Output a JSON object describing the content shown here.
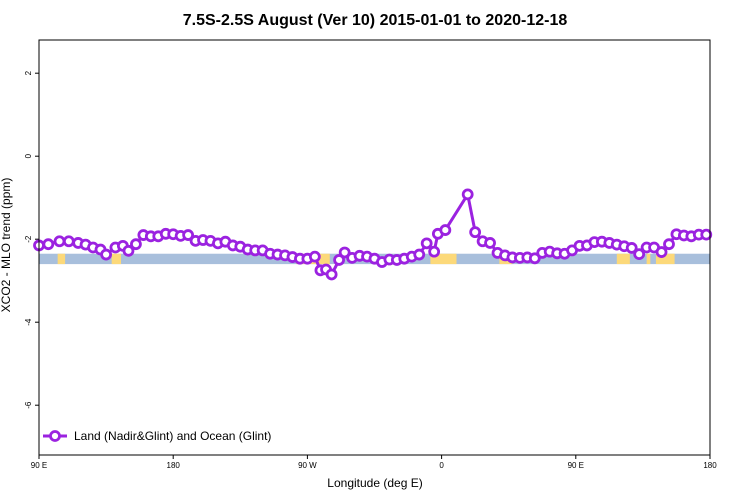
{
  "chart_data": {
    "type": "line",
    "title": "7.5S-2.5S August (Ver 10)   2015-01-01 to 2020-12-18",
    "xlabel": "Longitude (deg E)",
    "ylabel": "XCO2 - MLO trend (ppm)",
    "xlim": [
      90,
      450
    ],
    "ylim": [
      -7.2,
      2.8
    ],
    "x_ticks": [
      {
        "value": 90,
        "label": "90 E"
      },
      {
        "value": 162,
        "label": "180"
      },
      {
        "value": 234,
        "label": "90 W"
      },
      {
        "value": 306,
        "label": "0"
      },
      {
        "value": 378,
        "label": "90 E"
      },
      {
        "value": 450,
        "label": "180"
      }
    ],
    "y_ticks": [
      {
        "value": 2,
        "label": "2"
      },
      {
        "value": 0,
        "label": "0"
      },
      {
        "value": -2,
        "label": "-2"
      },
      {
        "value": -4,
        "label": "-4"
      },
      {
        "value": -6,
        "label": "-6"
      }
    ],
    "band": {
      "y_top": -2.35,
      "y_bottom": -2.6,
      "ocean_color": "#a8bfdc",
      "land_color": "#fcd97a"
    },
    "band_land_segments": [
      [
        100,
        104
      ],
      [
        129,
        134
      ],
      [
        228,
        246
      ],
      [
        300,
        314
      ],
      [
        337,
        344
      ],
      [
        400,
        407
      ],
      [
        416,
        418
      ],
      [
        421,
        431
      ]
    ],
    "grid": false,
    "legend": {
      "position": "bottom-left",
      "entries": [
        "Land (Nadir&Glint) and Ocean (Glint)"
      ]
    },
    "series": [
      {
        "name": "Land (Nadir&Glint) and Ocean (Glint)",
        "color": "#9b22e0",
        "points": [
          [
            90,
            -2.15
          ],
          [
            95,
            -2.12
          ],
          [
            101,
            -2.05
          ],
          [
            106,
            -2.05
          ],
          [
            111,
            -2.09
          ],
          [
            115,
            -2.13
          ],
          [
            119,
            -2.2
          ],
          [
            123,
            -2.25
          ],
          [
            126,
            -2.37
          ],
          [
            131,
            -2.2
          ],
          [
            135,
            -2.16
          ],
          [
            138,
            -2.28
          ],
          [
            142,
            -2.12
          ],
          [
            146,
            -1.9
          ],
          [
            150,
            -1.93
          ],
          [
            154,
            -1.93
          ],
          [
            158,
            -1.87
          ],
          [
            162,
            -1.88
          ],
          [
            166,
            -1.92
          ],
          [
            170,
            -1.9
          ],
          [
            174,
            -2.04
          ],
          [
            178,
            -2.02
          ],
          [
            182,
            -2.04
          ],
          [
            186,
            -2.1
          ],
          [
            190,
            -2.06
          ],
          [
            194,
            -2.15
          ],
          [
            198,
            -2.18
          ],
          [
            202,
            -2.25
          ],
          [
            206,
            -2.27
          ],
          [
            210,
            -2.27
          ],
          [
            214,
            -2.35
          ],
          [
            218,
            -2.37
          ],
          [
            222,
            -2.39
          ],
          [
            226,
            -2.43
          ],
          [
            230,
            -2.47
          ],
          [
            234,
            -2.47
          ],
          [
            238,
            -2.42
          ],
          [
            241,
            -2.75
          ],
          [
            244,
            -2.73
          ],
          [
            247,
            -2.85
          ],
          [
            251,
            -2.5
          ],
          [
            254,
            -2.32
          ],
          [
            258,
            -2.45
          ],
          [
            262,
            -2.4
          ],
          [
            266,
            -2.42
          ],
          [
            270,
            -2.47
          ],
          [
            274,
            -2.55
          ],
          [
            278,
            -2.49
          ],
          [
            282,
            -2.5
          ],
          [
            286,
            -2.47
          ],
          [
            290,
            -2.42
          ],
          [
            294,
            -2.37
          ],
          [
            298,
            -2.1
          ],
          [
            302,
            -2.3
          ],
          [
            304,
            -1.87
          ],
          [
            308,
            -1.78
          ],
          [
            320,
            -0.92
          ],
          [
            324,
            -1.83
          ],
          [
            328,
            -2.05
          ],
          [
            332,
            -2.09
          ],
          [
            336,
            -2.33
          ],
          [
            340,
            -2.39
          ],
          [
            344,
            -2.44
          ],
          [
            348,
            -2.45
          ],
          [
            352,
            -2.44
          ],
          [
            356,
            -2.46
          ],
          [
            360,
            -2.33
          ],
          [
            364,
            -2.3
          ],
          [
            368,
            -2.34
          ],
          [
            372,
            -2.35
          ],
          [
            376,
            -2.27
          ],
          [
            380,
            -2.16
          ],
          [
            384,
            -2.15
          ],
          [
            388,
            -2.07
          ],
          [
            392,
            -2.06
          ],
          [
            396,
            -2.09
          ],
          [
            400,
            -2.13
          ],
          [
            404,
            -2.17
          ],
          [
            408,
            -2.21
          ],
          [
            412,
            -2.36
          ],
          [
            416,
            -2.2
          ],
          [
            420,
            -2.2
          ],
          [
            424,
            -2.31
          ],
          [
            428,
            -2.12
          ],
          [
            432,
            -1.88
          ],
          [
            436,
            -1.91
          ],
          [
            440,
            -1.93
          ],
          [
            444,
            -1.89
          ],
          [
            448,
            -1.89
          ]
        ]
      }
    ]
  }
}
